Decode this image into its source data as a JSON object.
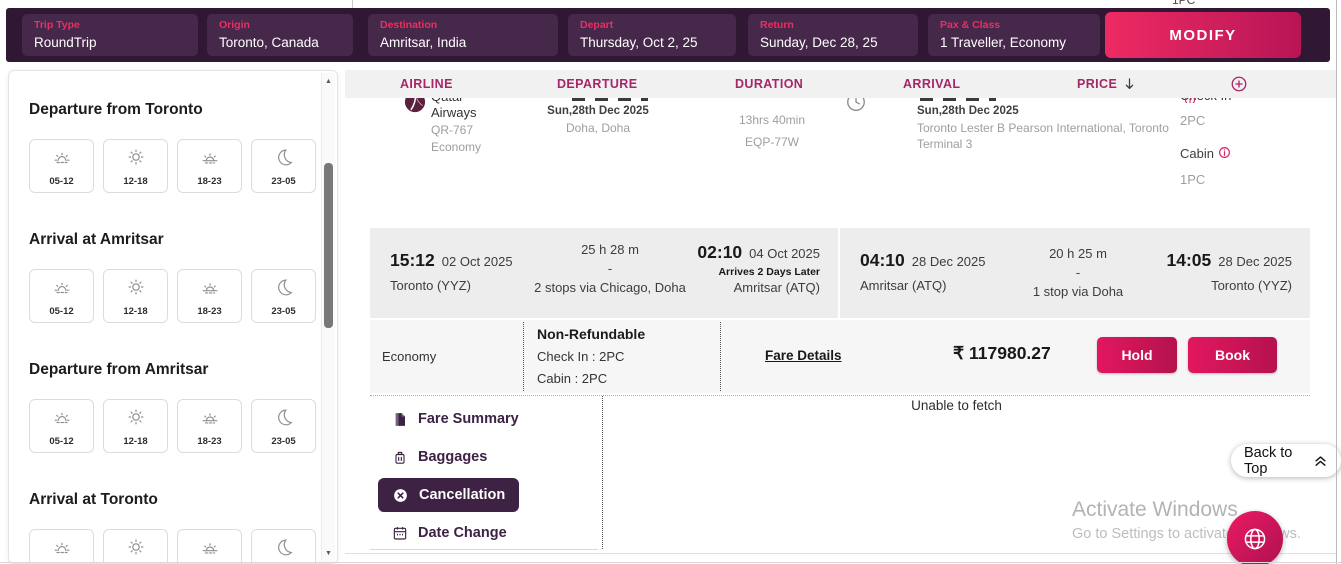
{
  "window": {
    "top_right_clipped_text": "1PC"
  },
  "search_bar": {
    "fields": [
      {
        "label": "Trip Type",
        "value": "RoundTrip"
      },
      {
        "label": "Origin",
        "value": "Toronto, Canada"
      },
      {
        "label": "Destination",
        "value": "Amritsar, India"
      },
      {
        "label": "Depart",
        "value": "Thursday, Oct 2, 25"
      },
      {
        "label": "Return",
        "value": "Sunday, Dec 28, 25"
      },
      {
        "label": "Pax & Class",
        "value": "1 Traveller, Economy"
      }
    ],
    "modify_label": "MODIFY"
  },
  "filters": {
    "sections": [
      {
        "title": "Departure from Toronto"
      },
      {
        "title": "Arrival at Amritsar"
      },
      {
        "title": "Departure from Amritsar"
      },
      {
        "title": "Arrival at Toronto"
      }
    ],
    "time_slots": [
      {
        "icon": "sunrise-icon",
        "label": "05-12"
      },
      {
        "icon": "sun-icon",
        "label": "12-18"
      },
      {
        "icon": "sunset-icon",
        "label": "18-23"
      },
      {
        "icon": "moon-icon",
        "label": "23-05"
      }
    ]
  },
  "results_header": {
    "columns": [
      "AIRLINE",
      "DEPARTURE",
      "DURATION",
      "ARRIVAL",
      "PRICE"
    ]
  },
  "flight": {
    "airline": {
      "name_top": "Qatar",
      "name_bottom": "Airways",
      "flight_no": "QR-767",
      "cabin_class": "Economy"
    },
    "segment": {
      "departure_date": "Sun,28th Dec 2025",
      "departure_city": "Doha, Doha",
      "duration": "13hrs 40min",
      "equipment": "EQP-77W",
      "arrival_date": "Sun,28th Dec 2025",
      "arrival_airport": "Toronto Lester B Pearson International, Toronto",
      "arrival_terminal": "Terminal 3",
      "check_in_label": "Check In",
      "check_in_value": "2PC",
      "cabin_label": "Cabin",
      "cabin_value": "1PC"
    },
    "outbound": {
      "dep_time": "15:12",
      "dep_date": "02 Oct 2025",
      "dep_city": "Toronto (YYZ)",
      "duration": "25 h 28 m",
      "dash": "-",
      "stops": "2 stops via Chicago, Doha",
      "arr_time": "02:10",
      "arr_date": "04 Oct 2025",
      "arrival_note": "Arrives 2 Days Later",
      "arr_city": "Amritsar (ATQ)"
    },
    "return": {
      "dep_time": "04:10",
      "dep_date": "28 Dec 2025",
      "dep_city": "Amritsar (ATQ)",
      "duration": "20 h 25 m",
      "dash": "-",
      "stops": "1 stop via Doha",
      "arr_time": "14:05",
      "arr_date": "28 Dec 2025",
      "arr_city": "Toronto (YYZ)"
    },
    "fare": {
      "cabin": "Economy",
      "refundability": "Non-Refundable",
      "check_in": "Check In : 2PC",
      "cabin_baggage": "Cabin : 2PC",
      "details_link": "Fare Details",
      "currency_price": "₹ 117980.27",
      "hold_label": "Hold",
      "book_label": "Book"
    },
    "tabs": [
      {
        "label": "Fare Summary",
        "icon": "fare-summary-icon",
        "active": false
      },
      {
        "label": "Baggages",
        "icon": "baggage-icon",
        "active": false
      },
      {
        "label": "Cancellation",
        "icon": "cancel-icon",
        "active": true
      },
      {
        "label": "Date Change",
        "icon": "calendar-icon",
        "active": false
      }
    ],
    "tab_panel_message": "Unable to fetch"
  },
  "back_to_top_label": "Back to Top",
  "system_watermark": {
    "line1": "Activate Windows",
    "line2": "Go to Settings to activate Windows."
  },
  "colors": {
    "accent_pink": "#e0175f",
    "dark_purple": "#301734",
    "field_purple": "#46284a",
    "header_magenta": "#a52767",
    "tab_purple": "#3d2244"
  }
}
